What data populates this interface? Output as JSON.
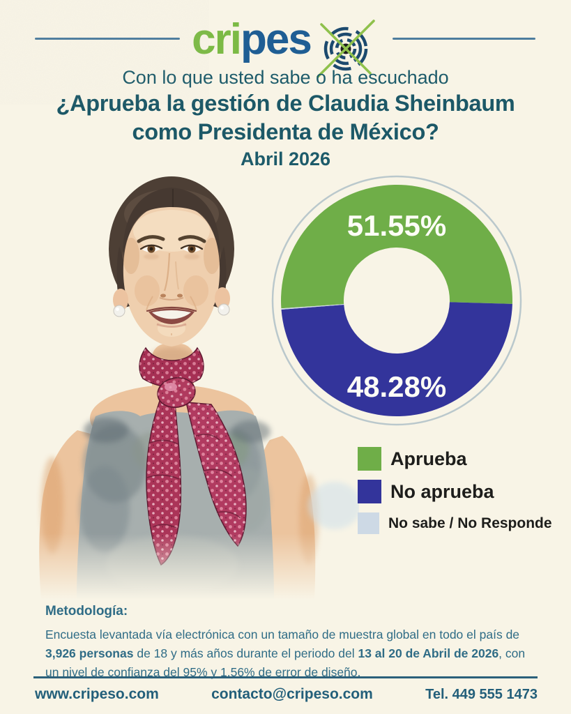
{
  "colors": {
    "background": "#f8f4e6",
    "heading_teal": "#1c5867",
    "rule_blue": "#4d7d9e",
    "methodology_text": "#2f6c86",
    "footer_text": "#235f7a",
    "logo_green": "#7cba45",
    "logo_blue": "#1f5e94",
    "legend_text": "#1d1d1b",
    "donut_ring": "#bac8cc"
  },
  "logo": {
    "part1": "cri",
    "part2": "pes",
    "icon": "target-crosshair-icon"
  },
  "header": {
    "kicker": "Con lo que usted sabe o ha escuchado",
    "question_line1": "¿Aprueba la gestión de Claudia Sheinbaum",
    "question_line2": "como Presidenta de México?",
    "period": "Abril 2026"
  },
  "chart_data": {
    "type": "pie",
    "donut": true,
    "title": "¿Aprueba la gestión de Claudia Sheinbaum como Presidenta de México? — Abril 2026",
    "categories": [
      "Aprueba",
      "No aprueba",
      "No sabe / No Responde"
    ],
    "values": [
      51.55,
      48.28,
      0.17
    ],
    "colors": [
      "#6fae48",
      "#33349b",
      "#cdd9e5"
    ],
    "slice_labels": [
      "51.55%",
      "48.28%"
    ],
    "start_angle_deg": -93.9,
    "legend_position": "below-right",
    "outer_radius": 166,
    "inner_radius": 76
  },
  "legend": {
    "items": [
      {
        "label": "Aprueba"
      },
      {
        "label": "No aprueba"
      },
      {
        "label": "No sabe / No Responde"
      }
    ]
  },
  "methodology": {
    "heading": "Metodología:",
    "segments": [
      {
        "text": "Encuesta levantada vía electrónica con un tamaño de muestra global en todo el país de ",
        "bold": false
      },
      {
        "text": "3,926 personas",
        "bold": true
      },
      {
        "text": " de 18 y más años durante el periodo del ",
        "bold": false
      },
      {
        "text": "13 al 20 de Abril de 2026",
        "bold": true
      },
      {
        "text": ", con un nivel de confianza del 95% y 1.56% de error de diseño.",
        "bold": false
      }
    ]
  },
  "footer": {
    "website": "www.cripeso.com",
    "email": "contacto@cripeso.com",
    "phone": "Tel. 449 555 1473"
  }
}
